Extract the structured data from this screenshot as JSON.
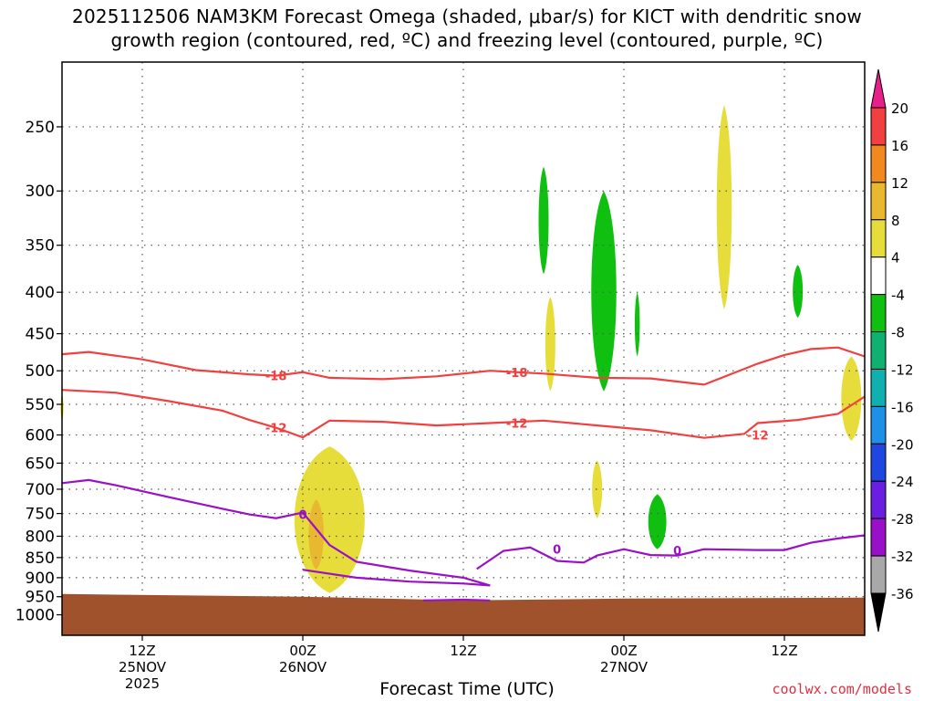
{
  "title": {
    "line1": "2025112506 NAM3KM Forecast Omega (shaded, μbar/s) for KICT with dendritic snow",
    "line2": "growth region (contoured, red, ºC) and freezing level (contoured, purple, ºC)"
  },
  "xlabel": "Forecast Time (UTC)",
  "credit": "coolwx.com/models",
  "chart_data": {
    "type": "time-height cross-section",
    "y_axis": {
      "label": "",
      "scale": "log pressure (hPa)",
      "ticks": [
        250,
        300,
        350,
        400,
        450,
        500,
        550,
        600,
        650,
        700,
        750,
        800,
        850,
        900,
        950,
        1000
      ]
    },
    "x_axis": {
      "ticks": [
        {
          "t": 12,
          "lines": [
            "12Z",
            "25NOV",
            "2025"
          ]
        },
        {
          "t": 24,
          "lines": [
            "00Z",
            "26NOV"
          ]
        },
        {
          "t": 36,
          "lines": [
            "12Z"
          ]
        },
        {
          "t": 48,
          "lines": [
            "00Z",
            "27NOV"
          ]
        },
        {
          "t": 60,
          "lines": [
            "12Z"
          ]
        }
      ],
      "range_hours_since_25NOV00Z": [
        6,
        66
      ]
    },
    "grid": true,
    "colorbar": {
      "labels": [
        "20",
        "16",
        "12",
        "8",
        "4",
        "-4",
        "-8",
        "-12",
        "-16",
        "-20",
        "-24",
        "-28",
        "-32",
        "-36"
      ],
      "colors": [
        "#e81e8a",
        "#f04040",
        "#f08a20",
        "#e8b830",
        "#e6dd3a",
        "#ffffff",
        "#10c010",
        "#10b070",
        "#10b0b0",
        "#1e90e8",
        "#1e46e0",
        "#6a1ee0",
        "#9a10c8",
        "#a8a8a8",
        "#000000"
      ]
    },
    "dgz_contours": [
      {
        "label": "-18",
        "color": "#f04040",
        "points": [
          [
            6,
            477
          ],
          [
            8,
            474
          ],
          [
            12,
            484
          ],
          [
            16,
            499
          ],
          [
            20,
            505
          ],
          [
            22,
            507
          ],
          [
            24,
            502
          ],
          [
            26,
            510
          ],
          [
            30,
            512
          ],
          [
            34,
            508
          ],
          [
            38,
            500
          ],
          [
            42,
            504
          ],
          [
            46,
            510
          ],
          [
            50,
            511
          ],
          [
            54,
            520
          ],
          [
            58,
            490
          ],
          [
            60,
            478
          ],
          [
            62,
            470
          ],
          [
            64,
            468
          ],
          [
            66,
            480
          ]
        ]
      },
      {
        "label": "-12",
        "color": "#f04040",
        "points": [
          [
            6,
            528
          ],
          [
            10,
            532
          ],
          [
            14,
            545
          ],
          [
            18,
            560
          ],
          [
            20,
            575
          ],
          [
            22,
            588
          ],
          [
            24,
            604
          ],
          [
            26,
            576
          ],
          [
            30,
            578
          ],
          [
            34,
            584
          ],
          [
            38,
            580
          ],
          [
            42,
            576
          ],
          [
            46,
            584
          ],
          [
            50,
            592
          ],
          [
            54,
            605
          ],
          [
            57,
            598
          ],
          [
            58,
            580
          ],
          [
            61,
            575
          ],
          [
            64,
            565
          ],
          [
            66,
            538
          ]
        ]
      }
    ],
    "freezing_level": {
      "label": "0",
      "color": "#9a10c8",
      "segments": [
        [
          [
            6,
            688
          ],
          [
            8,
            682
          ],
          [
            10,
            692
          ],
          [
            14,
            716
          ],
          [
            18,
            740
          ],
          [
            20,
            752
          ],
          [
            22,
            760
          ],
          [
            24,
            748
          ],
          [
            26,
            820
          ],
          [
            28,
            860
          ],
          [
            32,
            882
          ],
          [
            36,
            900
          ],
          [
            38,
            920
          ],
          [
            36,
            915
          ],
          [
            32,
            910
          ],
          [
            28,
            900
          ],
          [
            24,
            880
          ]
        ],
        [
          [
            37,
            878
          ],
          [
            39,
            834
          ],
          [
            41,
            826
          ],
          [
            43,
            858
          ],
          [
            45,
            862
          ],
          [
            46,
            845
          ],
          [
            48,
            830
          ],
          [
            50,
            844
          ],
          [
            52,
            845
          ],
          [
            54,
            830
          ],
          [
            58,
            832
          ],
          [
            60,
            832
          ],
          [
            62,
            815
          ],
          [
            64,
            805
          ],
          [
            66,
            798
          ]
        ],
        [
          [
            33,
            960
          ],
          [
            36,
            958
          ],
          [
            38,
            960
          ]
        ]
      ]
    },
    "omega_regions": [
      {
        "value": 6,
        "center": [
          26,
          760
        ],
        "width_h": 7,
        "top_hpa": 620,
        "bottom_hpa": 940
      },
      {
        "value": 10,
        "center": [
          25,
          780
        ],
        "width_h": 1.5,
        "top_hpa": 720,
        "bottom_hpa": 880
      },
      {
        "value": 6,
        "center": [
          42.5,
          440
        ],
        "width_h": 1,
        "top_hpa": 405,
        "bottom_hpa": 530
      },
      {
        "value": 6,
        "center": [
          46,
          690
        ],
        "width_h": 1,
        "top_hpa": 645,
        "bottom_hpa": 760
      },
      {
        "value": 6,
        "center": [
          55.5,
          320
        ],
        "width_h": 1.5,
        "top_hpa": 235,
        "bottom_hpa": 420
      },
      {
        "value": 6,
        "center": [
          65,
          550
        ],
        "width_h": 2,
        "top_hpa": 480,
        "bottom_hpa": 610
      },
      {
        "value": 6,
        "center": [
          6,
          555
        ],
        "width_h": 0.3,
        "top_hpa": 535,
        "bottom_hpa": 575
      },
      {
        "value": -6,
        "center": [
          42,
          340
        ],
        "width_h": 1,
        "top_hpa": 280,
        "bottom_hpa": 380
      },
      {
        "value": -6,
        "center": [
          46.5,
          420
        ],
        "width_h": 2.5,
        "top_hpa": 300,
        "bottom_hpa": 530
      },
      {
        "value": -6,
        "center": [
          49,
          440
        ],
        "width_h": 0.5,
        "top_hpa": 400,
        "bottom_hpa": 480
      },
      {
        "value": -6,
        "center": [
          50.5,
          760
        ],
        "width_h": 1.8,
        "top_hpa": 710,
        "bottom_hpa": 830
      },
      {
        "value": -6,
        "center": [
          61,
          400
        ],
        "width_h": 1,
        "top_hpa": 370,
        "bottom_hpa": 430
      }
    ],
    "terrain": {
      "color": "#a0522d",
      "surface_hpa": 955
    }
  }
}
